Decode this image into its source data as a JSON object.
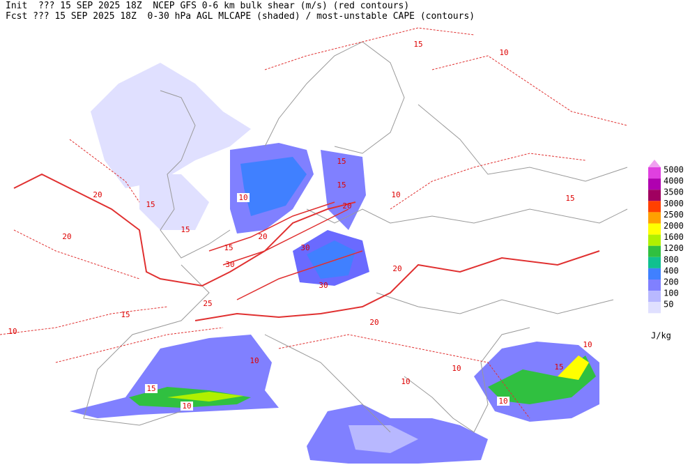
{
  "header": {
    "lines": [
      "Init  ??? 15 SEP 2025 18Z  NCEP GFS 0-6 km bulk shear (m/s) (red contours)",
      "Fcst ??? 15 SEP 2025 18Z  0-30 hPa AGL MLCAPE (shaded) / most-unstable CAPE (contours)"
    ]
  },
  "legend": {
    "levels": [
      {
        "value": 5000,
        "color": "#e040e0"
      },
      {
        "value": 4000,
        "color": "#b000b0"
      },
      {
        "value": 3500,
        "color": "#a00060"
      },
      {
        "value": 3000,
        "color": "#ff4000"
      },
      {
        "value": 2500,
        "color": "#ffa000"
      },
      {
        "value": 2000,
        "color": "#ffff00"
      },
      {
        "value": 1600,
        "color": "#b0f000"
      },
      {
        "value": 1200,
        "color": "#30c040"
      },
      {
        "value": 800,
        "color": "#10c090"
      },
      {
        "value": 400,
        "color": "#4080ff"
      },
      {
        "value": 200,
        "color": "#8080ff"
      },
      {
        "value": 100,
        "color": "#b8b8ff"
      },
      {
        "value": 50,
        "color": "#e0e0ff"
      }
    ],
    "top_color": "#f0a0f0",
    "unit": "J/kg"
  },
  "map": {
    "contour_labels": [
      10,
      15,
      20,
      15,
      15,
      20,
      10,
      15,
      20,
      30,
      15,
      30,
      20,
      30,
      25,
      15,
      20,
      10,
      15,
      10,
      10,
      15,
      10,
      10,
      15,
      10,
      10,
      20,
      15,
      10
    ]
  }
}
